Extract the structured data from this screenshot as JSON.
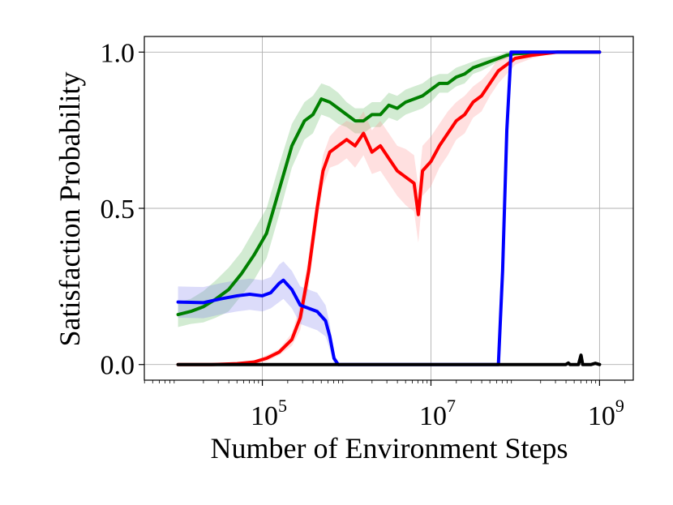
{
  "chart_data": {
    "type": "line",
    "title": "",
    "xlabel": "Number of Environment Steps",
    "ylabel": "Satisfaction Probability",
    "xscale": "log",
    "xlim_log10": [
      3.6,
      9.4
    ],
    "ylim": [
      -0.05,
      1.05
    ],
    "grid": true,
    "legend": "none",
    "x_ticks": [
      {
        "base": "10",
        "exp": "5",
        "value_log10": 5
      },
      {
        "base": "10",
        "exp": "7",
        "value_log10": 7
      },
      {
        "base": "10",
        "exp": "9",
        "value_log10": 9
      }
    ],
    "y_ticks": [
      {
        "label": "0.0",
        "value": 0.0
      },
      {
        "label": "0.5",
        "value": 0.5
      },
      {
        "label": "1.0",
        "value": 1.0
      }
    ],
    "series": [
      {
        "name": "green",
        "color": "#008000",
        "band_color": "#5cb85c",
        "points": [
          [
            4.0,
            0.16
          ],
          [
            4.15,
            0.17
          ],
          [
            4.3,
            0.185
          ],
          [
            4.45,
            0.21
          ],
          [
            4.6,
            0.24
          ],
          [
            4.75,
            0.29
          ],
          [
            4.9,
            0.35
          ],
          [
            5.05,
            0.42
          ],
          [
            5.2,
            0.56
          ],
          [
            5.35,
            0.7
          ],
          [
            5.5,
            0.78
          ],
          [
            5.6,
            0.8
          ],
          [
            5.7,
            0.85
          ],
          [
            5.8,
            0.84
          ],
          [
            5.9,
            0.82
          ],
          [
            6.0,
            0.8
          ],
          [
            6.1,
            0.78
          ],
          [
            6.2,
            0.78
          ],
          [
            6.3,
            0.8
          ],
          [
            6.4,
            0.8
          ],
          [
            6.5,
            0.83
          ],
          [
            6.6,
            0.82
          ],
          [
            6.7,
            0.84
          ],
          [
            6.8,
            0.85
          ],
          [
            6.9,
            0.86
          ],
          [
            7.0,
            0.88
          ],
          [
            7.1,
            0.9
          ],
          [
            7.2,
            0.9
          ],
          [
            7.3,
            0.92
          ],
          [
            7.4,
            0.93
          ],
          [
            7.5,
            0.95
          ],
          [
            7.6,
            0.96
          ],
          [
            7.7,
            0.97
          ],
          [
            7.8,
            0.98
          ],
          [
            7.9,
            0.99
          ],
          [
            8.0,
            0.995
          ],
          [
            8.5,
            1.0
          ],
          [
            9.0,
            1.0
          ]
        ],
        "band_halfwidth": [
          0.04,
          0.04,
          0.05,
          0.06,
          0.07,
          0.07,
          0.08,
          0.08,
          0.08,
          0.07,
          0.06,
          0.06,
          0.05,
          0.05,
          0.05,
          0.04,
          0.04,
          0.04,
          0.04,
          0.04,
          0.04,
          0.04,
          0.04,
          0.04,
          0.04,
          0.04,
          0.03,
          0.03,
          0.03,
          0.03,
          0.02,
          0.02,
          0.015,
          0.01,
          0.01,
          0.005,
          0.0,
          0.0
        ]
      },
      {
        "name": "red",
        "color": "#ff0000",
        "band_color": "#ff9090",
        "points": [
          [
            4.0,
            0.0
          ],
          [
            4.4,
            0.0
          ],
          [
            4.7,
            0.003
          ],
          [
            4.9,
            0.008
          ],
          [
            5.05,
            0.02
          ],
          [
            5.2,
            0.04
          ],
          [
            5.35,
            0.08
          ],
          [
            5.45,
            0.15
          ],
          [
            5.55,
            0.3
          ],
          [
            5.65,
            0.5
          ],
          [
            5.72,
            0.62
          ],
          [
            5.8,
            0.68
          ],
          [
            5.9,
            0.7
          ],
          [
            6.0,
            0.72
          ],
          [
            6.1,
            0.7
          ],
          [
            6.2,
            0.74
          ],
          [
            6.3,
            0.68
          ],
          [
            6.4,
            0.7
          ],
          [
            6.5,
            0.66
          ],
          [
            6.6,
            0.62
          ],
          [
            6.7,
            0.6
          ],
          [
            6.8,
            0.58
          ],
          [
            6.85,
            0.48
          ],
          [
            6.9,
            0.62
          ],
          [
            7.0,
            0.65
          ],
          [
            7.1,
            0.7
          ],
          [
            7.2,
            0.74
          ],
          [
            7.3,
            0.78
          ],
          [
            7.4,
            0.8
          ],
          [
            7.5,
            0.84
          ],
          [
            7.6,
            0.86
          ],
          [
            7.7,
            0.9
          ],
          [
            7.8,
            0.94
          ],
          [
            7.9,
            0.96
          ],
          [
            8.0,
            0.98
          ],
          [
            8.2,
            0.99
          ],
          [
            8.5,
            1.0
          ],
          [
            9.0,
            1.0
          ]
        ],
        "band_halfwidth": [
          0.0,
          0.0,
          0.0,
          0.005,
          0.01,
          0.01,
          0.02,
          0.04,
          0.05,
          0.05,
          0.05,
          0.05,
          0.06,
          0.06,
          0.07,
          0.07,
          0.07,
          0.08,
          0.08,
          0.08,
          0.09,
          0.09,
          0.09,
          0.08,
          0.08,
          0.07,
          0.07,
          0.06,
          0.06,
          0.05,
          0.05,
          0.04,
          0.04,
          0.03,
          0.02,
          0.01,
          0.0,
          0.0
        ]
      },
      {
        "name": "blue",
        "color": "#0000ff",
        "band_color": "#8080ee",
        "points": [
          [
            4.0,
            0.2
          ],
          [
            4.3,
            0.198
          ],
          [
            4.5,
            0.21
          ],
          [
            4.7,
            0.22
          ],
          [
            4.85,
            0.225
          ],
          [
            5.0,
            0.22
          ],
          [
            5.1,
            0.23
          ],
          [
            5.2,
            0.26
          ],
          [
            5.25,
            0.27
          ],
          [
            5.35,
            0.24
          ],
          [
            5.45,
            0.19
          ],
          [
            5.55,
            0.18
          ],
          [
            5.65,
            0.17
          ],
          [
            5.75,
            0.14
          ],
          [
            5.8,
            0.09
          ],
          [
            5.85,
            0.02
          ],
          [
            5.9,
            0.0
          ],
          [
            7.8,
            0.0
          ],
          [
            7.85,
            0.3
          ],
          [
            7.9,
            0.75
          ],
          [
            7.95,
            1.0
          ],
          [
            9.0,
            1.0
          ]
        ],
        "band_halfwidth": [
          0.05,
          0.05,
          0.05,
          0.05,
          0.05,
          0.05,
          0.05,
          0.06,
          0.06,
          0.06,
          0.06,
          0.06,
          0.06,
          0.05,
          0.04,
          0.02,
          0.0,
          0.0,
          0.0,
          0.0,
          0.0,
          0.0
        ]
      },
      {
        "name": "black",
        "color": "#000000",
        "band_color": "#999999",
        "points": [
          [
            4.0,
            0.0
          ],
          [
            8.6,
            0.0
          ],
          [
            8.63,
            0.005
          ],
          [
            8.65,
            0.0
          ],
          [
            8.75,
            0.0
          ],
          [
            8.78,
            0.03
          ],
          [
            8.8,
            0.0
          ],
          [
            8.9,
            0.0
          ],
          [
            8.95,
            0.004
          ],
          [
            9.0,
            0.0
          ]
        ],
        "band_halfwidth": [
          0.0,
          0.0,
          0.0,
          0.0,
          0.0,
          0.01,
          0.0,
          0.0,
          0.0,
          0.0
        ]
      }
    ]
  }
}
